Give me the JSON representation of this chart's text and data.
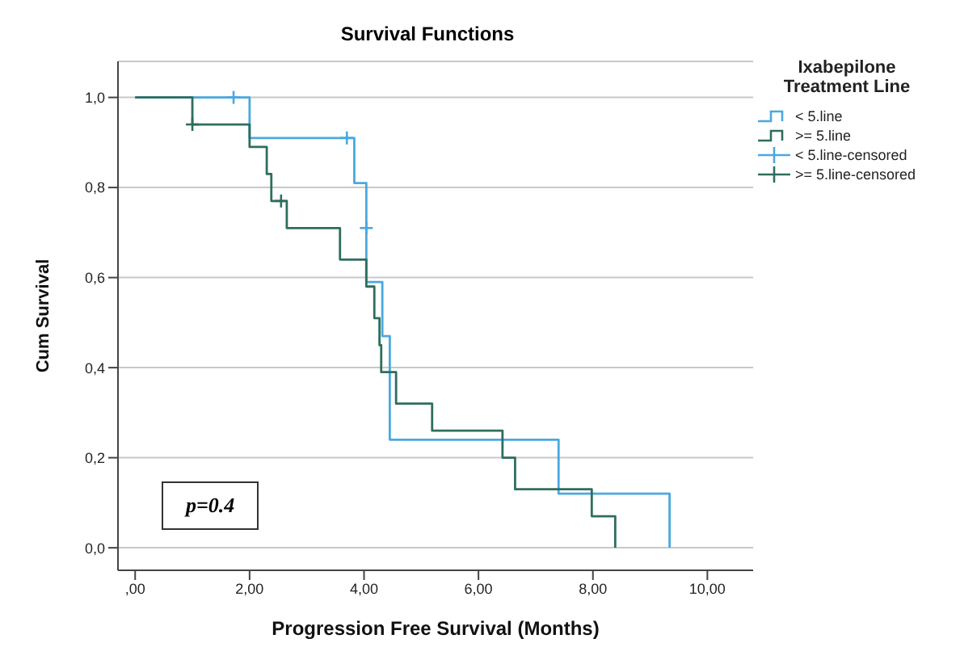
{
  "chart_data": {
    "type": "step",
    "title": "Survival Functions",
    "xlabel": "Progression Free Survival (Months)",
    "ylabel": "Cum Survival",
    "legend_title": "Ixabepilone Treatment Line",
    "xlim": [
      -0.3,
      10.8
    ],
    "xticks": [
      {
        "value": 0,
        "label": ",00"
      },
      {
        "value": 2,
        "label": "2,00"
      },
      {
        "value": 4,
        "label": "4,00"
      },
      {
        "value": 6,
        "label": "6,00"
      },
      {
        "value": 8,
        "label": "8,00"
      },
      {
        "value": 10,
        "label": "10,00"
      }
    ],
    "ylim": [
      -0.05,
      1.08
    ],
    "yticks": [
      {
        "value": 0,
        "label": "0,0"
      },
      {
        "value": 0.2,
        "label": "0,2"
      },
      {
        "value": 0.4,
        "label": "0,4"
      },
      {
        "value": 0.6,
        "label": "0,6"
      },
      {
        "value": 0.8,
        "label": "0,8"
      },
      {
        "value": 1,
        "label": "1,0"
      }
    ],
    "grid": "y",
    "legend": "top right",
    "annotations": [
      "p=0.4"
    ],
    "series": [
      {
        "name": "< 5.line",
        "color": "#4aa8e0",
        "x": [
          0,
          2.0,
          3.83,
          4.04,
          4.32,
          4.45,
          7.4,
          9.34
        ],
        "values": [
          1,
          0.91,
          0.81,
          0.59,
          0.47,
          0.24,
          0.12,
          0
        ]
      },
      {
        "name": ">= 5.line",
        "color": "#2e6e5e",
        "x": [
          0,
          1.0,
          2.0,
          2.3,
          2.38,
          2.65,
          3.58,
          4.04,
          4.18,
          4.27,
          4.3,
          4.56,
          5.19,
          6.42,
          6.64,
          7.98,
          8.39
        ],
        "values": [
          1,
          0.94,
          0.89,
          0.83,
          0.77,
          0.71,
          0.64,
          0.58,
          0.51,
          0.45,
          0.39,
          0.32,
          0.26,
          0.2,
          0.13,
          0.07,
          0
        ]
      },
      {
        "name": "< 5.line-censored",
        "type": "scatter",
        "marker": "cross",
        "color": "#4aa8e0",
        "x": [
          1.72,
          3.7,
          4.04
        ],
        "values": [
          1.0,
          0.91,
          0.71
        ]
      },
      {
        "name": ">= 5.line-censored",
        "type": "scatter",
        "marker": "cross",
        "color": "#2e6e5e",
        "x": [
          1.0,
          2.55
        ],
        "values": [
          0.94,
          0.77
        ]
      }
    ]
  }
}
